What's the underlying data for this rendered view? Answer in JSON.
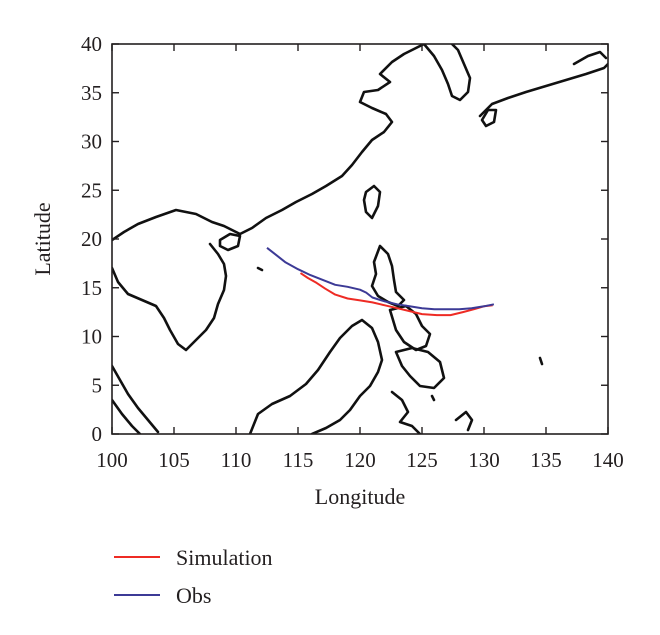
{
  "chart_data": {
    "type": "line",
    "title": "",
    "xlabel": "Longitude",
    "ylabel": "Latitude",
    "xlim": [
      100,
      140
    ],
    "ylim": [
      0,
      40
    ],
    "xticks": [
      100,
      105,
      110,
      115,
      120,
      125,
      130,
      135,
      140
    ],
    "yticks": [
      0,
      5,
      10,
      15,
      20,
      25,
      30,
      35,
      40
    ],
    "grid": false,
    "legend_placement": "bottom-left, below plot",
    "series": [
      {
        "name": "Simulation",
        "color": "#ee2b24",
        "x": [
          130.7,
          130.0,
          129.2,
          128.3,
          127.3,
          126.2,
          125.0,
          124.0,
          123.0,
          122.0,
          121.0,
          120.0,
          119.0,
          118.0,
          117.2,
          116.5,
          115.8,
          115.2
        ],
        "y": [
          13.2,
          13.1,
          12.8,
          12.5,
          12.2,
          12.2,
          12.3,
          12.6,
          12.9,
          13.2,
          13.5,
          13.7,
          13.9,
          14.3,
          14.9,
          15.5,
          16.0,
          16.5
        ]
      },
      {
        "name": "Obs",
        "color": "#3c3a96",
        "x": [
          130.8,
          130.0,
          129.0,
          128.0,
          127.0,
          126.0,
          125.0,
          124.0,
          123.0,
          122.0,
          121.0,
          120.5,
          120.0,
          119.0,
          118.0,
          117.0,
          116.0,
          115.0,
          114.0,
          113.3,
          112.5
        ],
        "y": [
          13.3,
          13.1,
          12.9,
          12.8,
          12.8,
          12.8,
          12.9,
          13.1,
          13.3,
          13.6,
          14.0,
          14.5,
          14.8,
          15.1,
          15.3,
          15.8,
          16.3,
          16.9,
          17.6,
          18.3,
          19.1
        ]
      }
    ]
  }
}
